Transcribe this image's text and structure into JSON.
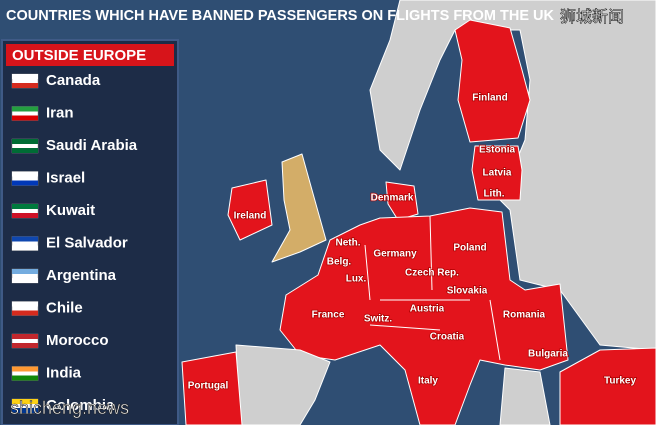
{
  "header": {
    "title": "COUNTRIES WHICH HAVE BANNED PASSENGERS ON FLIGHTS FROM THE UK",
    "watermark_top": "狮城新闻",
    "watermark_bottom": "shicheng.news"
  },
  "sidebar": {
    "title": "OUTSIDE EUROPE",
    "countries": [
      "Canada",
      "Iran",
      "Saudi Arabia",
      "Israel",
      "Kuwait",
      "El Salvador",
      "Argentina",
      "Chile",
      "Morocco",
      "India",
      "Colombia"
    ]
  },
  "map": {
    "labels": [
      "Finland",
      "Estonia",
      "Latvia",
      "Lith.",
      "Denmark",
      "Ireland",
      "Neth.",
      "Belg.",
      "Lux.",
      "Germany",
      "Poland",
      "Czech Rep.",
      "Slovakia",
      "Austria",
      "Switz.",
      "France",
      "Romania",
      "Croatia",
      "Bulgaria",
      "Italy",
      "Portugal",
      "Turkey"
    ]
  }
}
